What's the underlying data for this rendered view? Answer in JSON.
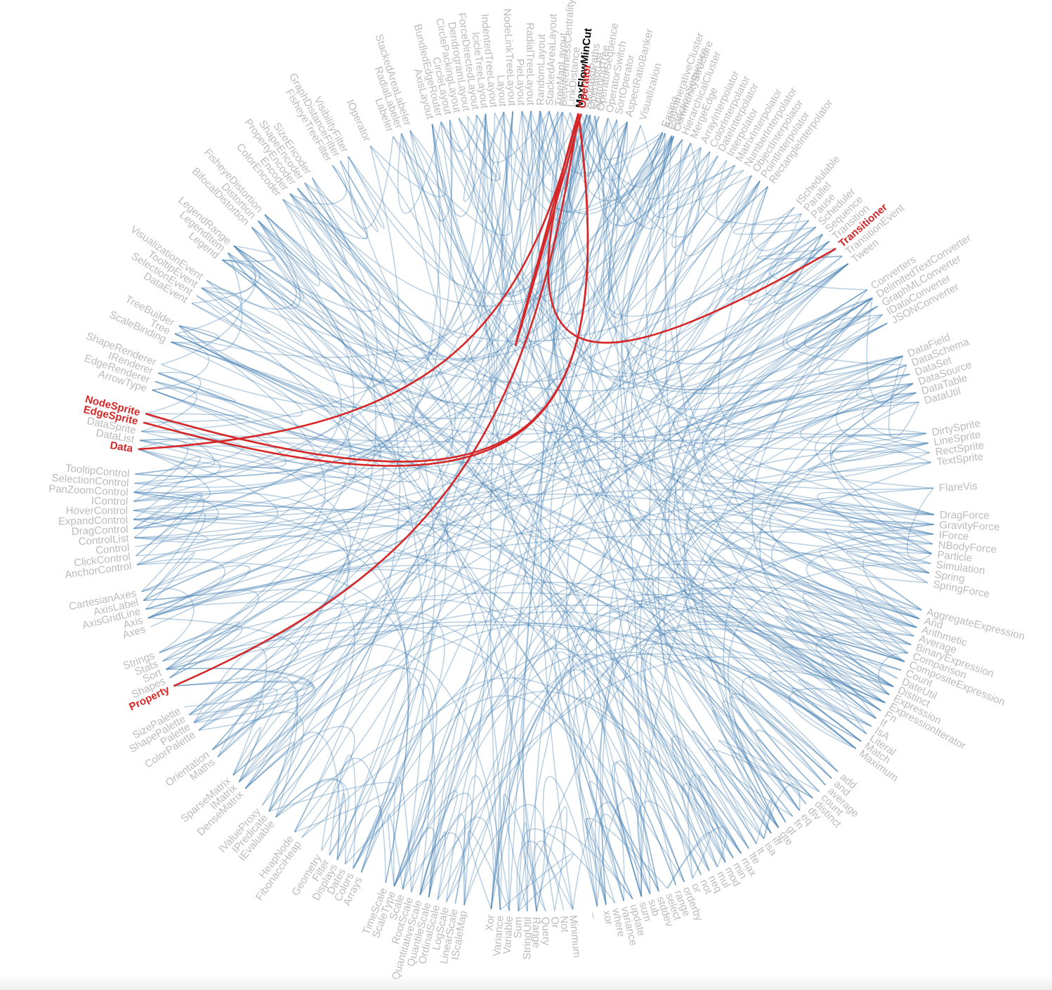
{
  "diagram": {
    "type": "hierarchical-edge-bundling",
    "colors": {
      "label": "#bbbbbb",
      "link": "#4682b4",
      "highlight": "#d62728",
      "focus": "#000000"
    },
    "focus_node": "MaxFlowMinCut",
    "highlight_nodes": [
      "Operator",
      "Transitioner",
      "NodeSprite",
      "EdgeSprite",
      "Data",
      "Property"
    ],
    "nodes": [
      {
        "name": "MaxFlowMinCut",
        "deg": -83.6
      },
      {
        "name": "ShortestPaths",
        "deg": -82.4
      },
      {
        "name": "SpanningTree",
        "deg": -81.2
      },
      {
        "name": "AspectRatioBanker",
        "deg": -76.5
      },
      {
        "name": "Easing",
        "deg": -71.2
      },
      {
        "name": "FunctionSequence",
        "deg": -69.8
      },
      {
        "name": "ArrayInterpolator",
        "deg": -65.3
      },
      {
        "name": "ColorInterpolator",
        "deg": -63.9
      },
      {
        "name": "DateInterpolator",
        "deg": -62.6
      },
      {
        "name": "Interpolator",
        "deg": -61.2
      },
      {
        "name": "MatrixInterpolator",
        "deg": -59.8
      },
      {
        "name": "NumberInterpolator",
        "deg": -58.4
      },
      {
        "name": "ObjectInterpolator",
        "deg": -57.0
      },
      {
        "name": "PointInterpolator",
        "deg": -55.6
      },
      {
        "name": "RectangleInterpolator",
        "deg": -54.2
      },
      {
        "name": "ISchedulable",
        "deg": -49.4
      },
      {
        "name": "Parallel",
        "deg": -48.0
      },
      {
        "name": "Pause",
        "deg": -46.6
      },
      {
        "name": "Scheduler",
        "deg": -45.2
      },
      {
        "name": "Sequence",
        "deg": -43.8
      },
      {
        "name": "Transition",
        "deg": -42.4
      },
      {
        "name": "Transitioner",
        "deg": -41.0
      },
      {
        "name": "TransitionEvent",
        "deg": -39.6
      },
      {
        "name": "Tween",
        "deg": -38.2
      },
      {
        "name": "Converters",
        "deg": -33.6
      },
      {
        "name": "DelimitedTextConverter",
        "deg": -32.2
      },
      {
        "name": "GraphMLConverter",
        "deg": -30.8
      },
      {
        "name": "IDataConverter",
        "deg": -29.4
      },
      {
        "name": "JSONConverter",
        "deg": -28.0
      },
      {
        "name": "DataField",
        "deg": -22.8
      },
      {
        "name": "DataSchema",
        "deg": -21.4
      },
      {
        "name": "DataSet",
        "deg": -20.0
      },
      {
        "name": "DataSource",
        "deg": -18.6
      },
      {
        "name": "DataTable",
        "deg": -17.2
      },
      {
        "name": "DataUtil",
        "deg": -15.8
      },
      {
        "name": "DirtySprite",
        "deg": -11.2
      },
      {
        "name": "LineSprite",
        "deg": -9.8
      },
      {
        "name": "RectSprite",
        "deg": -8.4
      },
      {
        "name": "TextSprite",
        "deg": -7.0
      },
      {
        "name": "FlareVis",
        "deg": -3.3
      },
      {
        "name": "DragForce",
        "deg": 0.5
      },
      {
        "name": "GravityForce",
        "deg": 1.9
      },
      {
        "name": "IForce",
        "deg": 3.3
      },
      {
        "name": "NBodyForce",
        "deg": 4.7
      },
      {
        "name": "Particle",
        "deg": 6.1
      },
      {
        "name": "Simulation",
        "deg": 7.5
      },
      {
        "name": "Spring",
        "deg": 8.9
      },
      {
        "name": "SpringForce",
        "deg": 10.3
      },
      {
        "name": "AggregateExpression",
        "deg": 14.3
      },
      {
        "name": "And",
        "deg": 15.6
      },
      {
        "name": "Arithmetic",
        "deg": 16.9
      },
      {
        "name": "Average",
        "deg": 18.2
      },
      {
        "name": "BinaryExpression",
        "deg": 19.5
      },
      {
        "name": "Comparison",
        "deg": 20.8
      },
      {
        "name": "CompositeExpression",
        "deg": 22.1
      },
      {
        "name": "Count",
        "deg": 23.4
      },
      {
        "name": "DateUtil",
        "deg": 24.7
      },
      {
        "name": "Distinct",
        "deg": 26.0
      },
      {
        "name": "Expression",
        "deg": 27.3
      },
      {
        "name": "ExpressionIterator",
        "deg": 28.6
      },
      {
        "name": "Fn",
        "deg": 29.9
      },
      {
        "name": "If",
        "deg": 31.2
      },
      {
        "name": "IsA",
        "deg": 32.5
      },
      {
        "name": "Literal",
        "deg": 33.8
      },
      {
        "name": "Match",
        "deg": 35.1
      },
      {
        "name": "Maximum",
        "deg": 36.4
      },
      {
        "name": "add",
        "deg": 40.6
      },
      {
        "name": "and",
        "deg": 41.9
      },
      {
        "name": "average",
        "deg": 43.2
      },
      {
        "name": "count",
        "deg": 44.5
      },
      {
        "name": "distinct",
        "deg": 45.8
      },
      {
        "name": "div",
        "deg": 47.1
      },
      {
        "name": "eq",
        "deg": 48.4
      },
      {
        "name": "fn",
        "deg": 49.7
      },
      {
        "name": "gt",
        "deg": 51.0
      },
      {
        "name": "gte",
        "deg": 52.3
      },
      {
        "name": "iff",
        "deg": 53.6
      },
      {
        "name": "isa",
        "deg": 54.9
      },
      {
        "name": "lt",
        "deg": 56.2
      },
      {
        "name": "lte",
        "deg": 57.5
      },
      {
        "name": "max",
        "deg": 58.8
      },
      {
        "name": "min",
        "deg": 60.1
      },
      {
        "name": "mod",
        "deg": 61.4
      },
      {
        "name": "mul",
        "deg": 62.7
      },
      {
        "name": "neq",
        "deg": 64.0
      },
      {
        "name": "not",
        "deg": 65.3
      },
      {
        "name": "or",
        "deg": 66.6
      },
      {
        "name": "orderby",
        "deg": 67.9
      },
      {
        "name": "range",
        "deg": 69.2
      },
      {
        "name": "select",
        "deg": 70.5
      },
      {
        "name": "stddev",
        "deg": 71.8
      },
      {
        "name": "sub",
        "deg": 73.1
      },
      {
        "name": "sum",
        "deg": 74.4
      },
      {
        "name": "update",
        "deg": 75.7
      },
      {
        "name": "variance",
        "deg": 77.0
      },
      {
        "name": "where",
        "deg": 78.3
      },
      {
        "name": "xor",
        "deg": 79.6
      },
      {
        "name": "_",
        "deg": 80.9
      },
      {
        "name": "Minimum",
        "deg": 84.4
      },
      {
        "name": "Not",
        "deg": 85.7
      },
      {
        "name": "Or",
        "deg": 87.0
      },
      {
        "name": "Query",
        "deg": 88.3
      },
      {
        "name": "Range",
        "deg": 89.6
      },
      {
        "name": "StringUtil",
        "deg": 90.9
      },
      {
        "name": "Sum",
        "deg": 92.2
      },
      {
        "name": "Variable",
        "deg": 93.5
      },
      {
        "name": "Variance",
        "deg": 94.8
      },
      {
        "name": "Xor",
        "deg": 96.1
      },
      {
        "name": "IScaleMap",
        "deg": 100.0
      },
      {
        "name": "LinearScale",
        "deg": 101.3
      },
      {
        "name": "LogScale",
        "deg": 102.6
      },
      {
        "name": "OrdinalScale",
        "deg": 103.9
      },
      {
        "name": "QuantileScale",
        "deg": 105.2
      },
      {
        "name": "QuantitativeScale",
        "deg": 106.5
      },
      {
        "name": "RootScale",
        "deg": 107.8
      },
      {
        "name": "Scale",
        "deg": 109.1
      },
      {
        "name": "ScaleType",
        "deg": 110.4
      },
      {
        "name": "TimeScale",
        "deg": 111.7
      },
      {
        "name": "Arrays",
        "deg": 115.5
      },
      {
        "name": "Colors",
        "deg": 116.8
      },
      {
        "name": "Dates",
        "deg": 118.1
      },
      {
        "name": "Displays",
        "deg": 119.4
      },
      {
        "name": "Filter",
        "deg": 120.7
      },
      {
        "name": "Geometry",
        "deg": 122.0
      },
      {
        "name": "FibonacciHeap",
        "deg": 125.4
      },
      {
        "name": "HeapNode",
        "deg": 126.7
      },
      {
        "name": "IEvaluable",
        "deg": 130.1
      },
      {
        "name": "IPredicate",
        "deg": 131.4
      },
      {
        "name": "IValueProxy",
        "deg": 132.7
      },
      {
        "name": "DenseMatrix",
        "deg": 136.1
      },
      {
        "name": "IMatrix",
        "deg": 137.4
      },
      {
        "name": "SparseMatrix",
        "deg": 138.7
      },
      {
        "name": "Maths",
        "deg": 142.1
      },
      {
        "name": "Orientation",
        "deg": 143.4
      },
      {
        "name": "ColorPalette",
        "deg": 146.8
      },
      {
        "name": "Palette",
        "deg": 148.1
      },
      {
        "name": "ShapePalette",
        "deg": 149.4
      },
      {
        "name": "SizePalette",
        "deg": 150.7
      },
      {
        "name": "Property",
        "deg": 154.1
      },
      {
        "name": "Shapes",
        "deg": 155.4
      },
      {
        "name": "Sort",
        "deg": 156.7
      },
      {
        "name": "Stats",
        "deg": 158.0
      },
      {
        "name": "Strings",
        "deg": 159.3
      },
      {
        "name": "Axes",
        "deg": 163.2
      },
      {
        "name": "Axis",
        "deg": 164.5
      },
      {
        "name": "AxisGridLine",
        "deg": 165.8
      },
      {
        "name": "AxisLabel",
        "deg": 167.1
      },
      {
        "name": "CartesianAxes",
        "deg": 168.4
      },
      {
        "name": "AnchorControl",
        "deg": 172.3
      },
      {
        "name": "ClickControl",
        "deg": 173.6
      },
      {
        "name": "Control",
        "deg": 174.9
      },
      {
        "name": "ControlList",
        "deg": 176.2
      },
      {
        "name": "DragControl",
        "deg": 177.5
      },
      {
        "name": "ExpandControl",
        "deg": 178.8
      },
      {
        "name": "HoverControl",
        "deg": 180.1
      },
      {
        "name": "IControl",
        "deg": 181.4
      },
      {
        "name": "PanZoomControl",
        "deg": 182.7
      },
      {
        "name": "SelectionControl",
        "deg": 184.0
      },
      {
        "name": "TooltipControl",
        "deg": 185.3
      },
      {
        "name": "Data",
        "deg": 188.9
      },
      {
        "name": "DataList",
        "deg": 190.2
      },
      {
        "name": "DataSprite",
        "deg": 191.5
      },
      {
        "name": "EdgeSprite",
        "deg": 192.8
      },
      {
        "name": "NodeSprite",
        "deg": 194.1
      },
      {
        "name": "ArrowType",
        "deg": 197.6
      },
      {
        "name": "EdgeRenderer",
        "deg": 198.9
      },
      {
        "name": "IRenderer",
        "deg": 200.2
      },
      {
        "name": "ShapeRenderer",
        "deg": 201.5
      },
      {
        "name": "ScaleBinding",
        "deg": 205.0
      },
      {
        "name": "Tree",
        "deg": 206.3
      },
      {
        "name": "TreeBuilder",
        "deg": 207.6
      },
      {
        "name": "DataEvent",
        "deg": 211.3
      },
      {
        "name": "SelectionEvent",
        "deg": 212.6
      },
      {
        "name": "TooltipEvent",
        "deg": 213.9
      },
      {
        "name": "VisualizationEvent",
        "deg": 215.2
      },
      {
        "name": "Legend",
        "deg": 218.9
      },
      {
        "name": "LegendItem",
        "deg": 220.2
      },
      {
        "name": "LegendRange",
        "deg": 221.5
      },
      {
        "name": "BifocalDistortion",
        "deg": 225.2
      },
      {
        "name": "Distortion",
        "deg": 226.5
      },
      {
        "name": "FisheyeDistortion",
        "deg": 227.8
      },
      {
        "name": "ColorEncoder",
        "deg": 231.2
      },
      {
        "name": "Encoder",
        "deg": 232.5
      },
      {
        "name": "PropertyEncoder",
        "deg": 233.8
      },
      {
        "name": "ShapeEncoder",
        "deg": 235.1
      },
      {
        "name": "SizeEncoder",
        "deg": 236.4
      },
      {
        "name": "FisheyeTreeFilter",
        "deg": 239.8
      },
      {
        "name": "GraphDistanceFilter",
        "deg": 241.1
      },
      {
        "name": "VisibilityFilter",
        "deg": 242.4
      },
      {
        "name": "IOperator",
        "deg": 245.9
      },
      {
        "name": "Labeler",
        "deg": 249.4
      },
      {
        "name": "RadialLabeler",
        "deg": 250.7
      },
      {
        "name": "StackedAreaLabeler",
        "deg": 252.0
      },
      {
        "name": "AxisLayout",
        "deg": 255.3
      },
      {
        "name": "BundledEdgeRouter",
        "deg": 256.6
      },
      {
        "name": "CircleLayout",
        "deg": 257.9
      },
      {
        "name": "CirclePackingLayout",
        "deg": 259.2
      },
      {
        "name": "DendrogramLayout",
        "deg": 260.5
      },
      {
        "name": "ForceDirectedLayout",
        "deg": 261.8
      },
      {
        "name": "IcicleTreeLayout",
        "deg": 263.1
      },
      {
        "name": "IndentedTreeLayout",
        "deg": 264.4
      },
      {
        "name": "Layout",
        "deg": 265.7
      },
      {
        "name": "NodeLinkTreeLayout",
        "deg": 267.0
      },
      {
        "name": "PieLayout",
        "deg": 268.3
      },
      {
        "name": "RadialTreeLayout",
        "deg": 269.6
      },
      {
        "name": "RandomLayout",
        "deg": 270.9
      },
      {
        "name": "StackedAreaLayout",
        "deg": 272.2
      },
      {
        "name": "TreeMapLayout",
        "deg": 273.5
      },
      {
        "name": "Operator",
        "deg": 276.8
      },
      {
        "name": "OperatorList",
        "deg": 278.1
      },
      {
        "name": "OperatorSequence",
        "deg": 279.4
      },
      {
        "name": "OperatorSwitch",
        "deg": 280.7
      },
      {
        "name": "SortOperator",
        "deg": 282.0
      },
      {
        "name": "Visualization",
        "deg": 285.5
      },
      {
        "name": "AgglomerativeCluster",
        "deg": 289.2
      },
      {
        "name": "CommunityStructure",
        "deg": 290.5
      },
      {
        "name": "HierarchicalCluster",
        "deg": 291.8
      },
      {
        "name": "MergeEdge",
        "deg": 293.1
      },
      {
        "name": "BetweennessCentrality",
        "deg": 272.0
      },
      {
        "name": "LinkDistance",
        "deg": 273.3
      }
    ]
  }
}
